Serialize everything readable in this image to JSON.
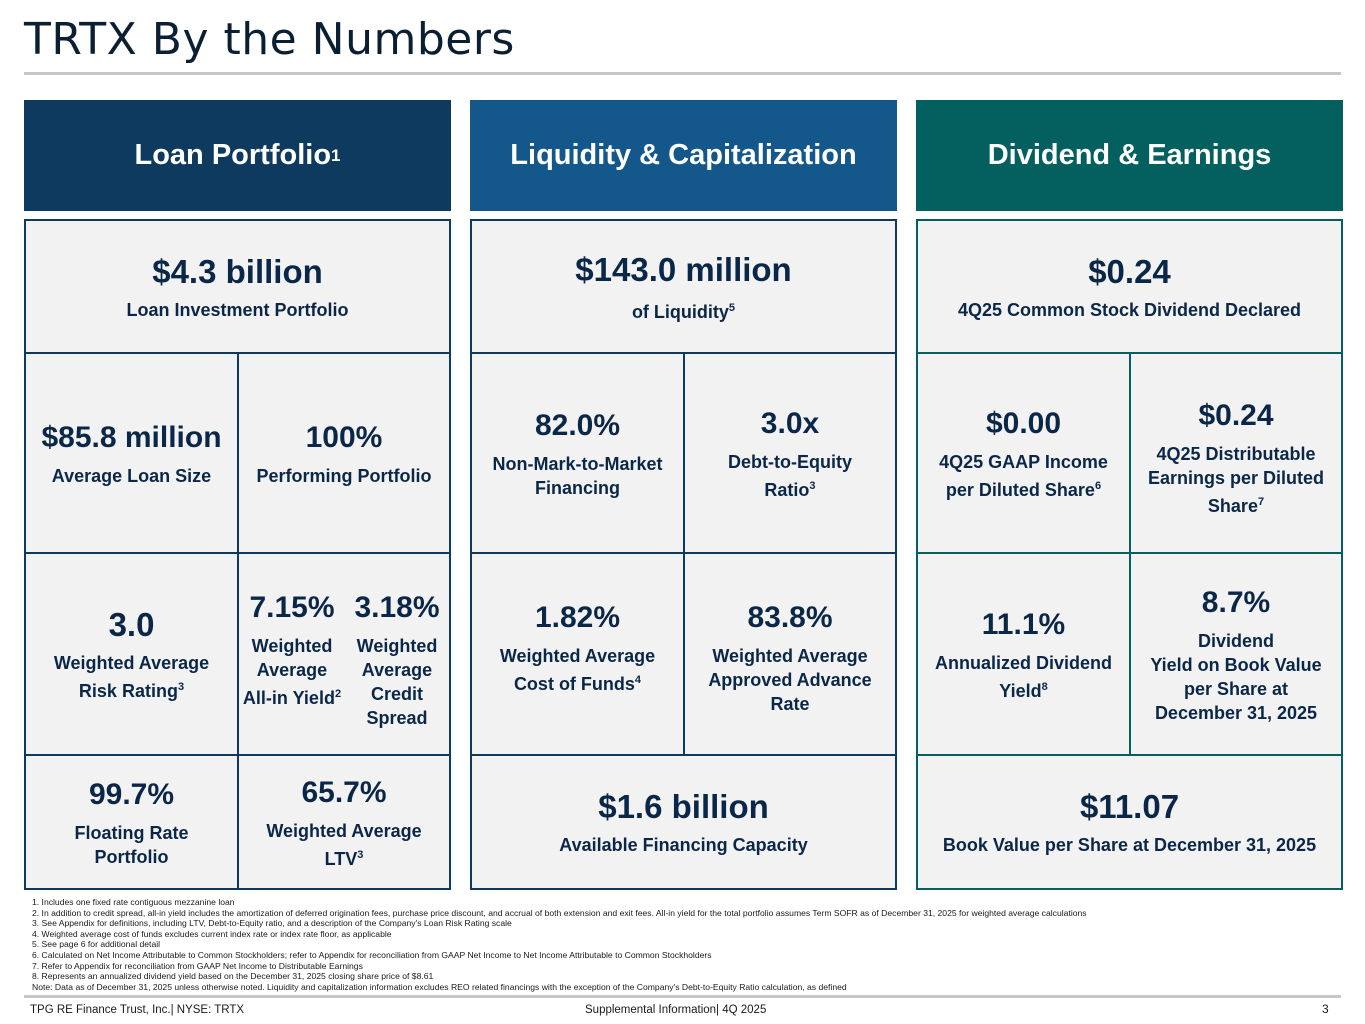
{
  "title": "TRTX By the Numbers",
  "columns": {
    "loan": {
      "header": "Loan Portfolio",
      "header_sup": "1",
      "top": {
        "value": "$4.3 billion",
        "label": "Loan Investment Portfolio"
      },
      "avg_size": {
        "value": "$85.8 million",
        "label": "Average Loan Size"
      },
      "performing": {
        "value": "100%",
        "label": "Performing Portfolio"
      },
      "risk": {
        "value": "3.0",
        "label_line1": "Weighted Average",
        "label_line2": "Risk Rating",
        "sup": "3"
      },
      "yield": {
        "value": "7.15%",
        "l1": "Weighted",
        "l2": "Average",
        "l3": "All-in Yield",
        "sup": "2"
      },
      "spread": {
        "value": "3.18%",
        "l1": "Weighted",
        "l2": "Average",
        "l3": "Credit",
        "l4": "Spread"
      },
      "floating": {
        "value": "99.7%",
        "l1": "Floating Rate",
        "l2": "Portfolio"
      },
      "ltv": {
        "value": "65.7%",
        "l1": "Weighted Average",
        "l2": "LTV",
        "sup": "3"
      }
    },
    "liquidity": {
      "header": "Liquidity & Capitalization",
      "top": {
        "value": "$143.0 million",
        "label": "of Liquidity",
        "sup": "5"
      },
      "nmtm": {
        "value": "82.0%",
        "l1": "Non-Mark-to-Market",
        "l2": "Financing"
      },
      "dte": {
        "value": "3.0x",
        "l1": "Debt-to-Equity",
        "l2": "Ratio",
        "sup": "3"
      },
      "cof": {
        "value": "1.82%",
        "l1": "Weighted Average",
        "l2": "Cost of Funds",
        "sup": "4"
      },
      "advance": {
        "value": "83.8%",
        "l1": "Weighted Average",
        "l2": "Approved Advance",
        "l3": "Rate"
      },
      "capacity": {
        "value": "$1.6 billion",
        "label": "Available Financing Capacity"
      }
    },
    "dividend": {
      "header": "Dividend & Earnings",
      "top": {
        "value": "$0.24",
        "label": "4Q25 Common Stock Dividend Declared"
      },
      "gaap": {
        "value": "$0.00",
        "l1": "4Q25 GAAP Income",
        "l2": "per Diluted Share",
        "sup": "6"
      },
      "dist": {
        "value": "$0.24",
        "l1": "4Q25 Distributable",
        "l2": "Earnings per Diluted",
        "l3": "Share",
        "sup": "7"
      },
      "annualized": {
        "value": "11.1%",
        "l1": "Annualized Dividend",
        "l2": "Yield",
        "sup": "8"
      },
      "bv_yield": {
        "value": "8.7%",
        "l1": "Dividend",
        "l2": "Yield on Book Value",
        "l3": "per Share at",
        "l4": "December 31, 2025"
      },
      "bvps": {
        "value": "$11.07",
        "label": "Book Value per Share at December 31, 2025"
      }
    }
  },
  "footnotes": [
    "1. Includes one fixed rate contiguous mezzanine loan",
    "2. In addition to credit spread, all-in yield includes the amortization of deferred origination fees, purchase price discount, and accrual of both extension and exit fees. All-in yield for the total portfolio assumes Term SOFR as of December 31, 2025 for weighted average calculations",
    "3. See Appendix for definitions, including LTV, Debt-to-Equity ratio, and a description of the Company's Loan Risk Rating scale",
    "4. Weighted average cost of funds excludes current index rate or index rate floor, as applicable",
    "5. See page 6 for additional detail",
    "6. Calculated on Net Income  Attributable to Common Stockholders; refer to Appendix for reconciliation from GAAP Net Income to Net Income Attributable to Common Stockholders",
    "7. Refer to Appendix for reconciliation from GAAP Net Income to Distributable Earnings",
    "8. Represents an annualized dividend yield based on the December 31, 2025 closing share price of $8.61",
    "Note: Data as of December 31, 2025 unless otherwise noted. Liquidity and capitalization information excludes REO related financings with the exception of the Company's Debt-to-Equity Ratio calculation, as defined"
  ],
  "footer": {
    "left": "TPG RE Finance Trust, Inc.| NYSE: TRTX",
    "center": "Supplemental Information| 4Q 2025",
    "page": "3"
  }
}
